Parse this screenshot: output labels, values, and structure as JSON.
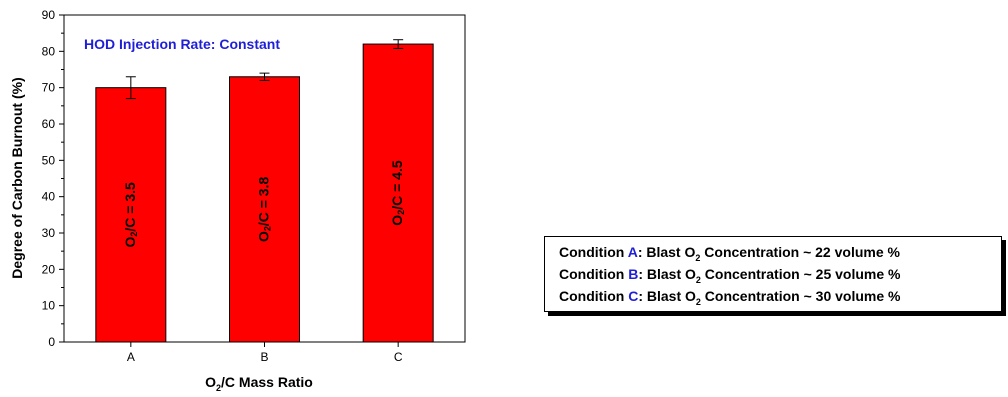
{
  "chart_data": {
    "type": "bar",
    "categories": [
      "A",
      "B",
      "C"
    ],
    "values": [
      70,
      73,
      82
    ],
    "errors": [
      3,
      1,
      1.2
    ],
    "bar_labels": [
      {
        "pre": "O",
        "sub": "2",
        "post": "/C = 3.5"
      },
      {
        "pre": "O",
        "sub": "2",
        "post": "/C = 3.8"
      },
      {
        "pre": "O",
        "sub": "2",
        "post": "/C = 4.5"
      }
    ],
    "annotation": "HOD Injection Rate: Constant",
    "xlabel": {
      "pre": "O",
      "sub": "2",
      "post": "/C Mass Ratio"
    },
    "ylabel": "Degree of Carbon Burnout (%)",
    "ylim": [
      0,
      90
    ],
    "yticks": [
      0,
      10,
      20,
      30,
      40,
      50,
      60,
      70,
      80,
      90
    ],
    "colors": {
      "bar": "#ff0000",
      "annotation": "#1f1fd6",
      "legend_letter": "#1f1fd6"
    }
  },
  "legend": [
    {
      "prefix": "Condition ",
      "letter": "A",
      "mid": ": Blast O",
      "sub": "2",
      "suffix": " Concentration ~ 22 volume %"
    },
    {
      "prefix": "Condition ",
      "letter": "B",
      "mid": ": Blast O",
      "sub": "2",
      "suffix": " Concentration ~ 25 volume %"
    },
    {
      "prefix": "Condition ",
      "letter": "C",
      "mid": ": Blast O",
      "sub": "2",
      "suffix": " Concentration ~ 30 volume %"
    }
  ]
}
